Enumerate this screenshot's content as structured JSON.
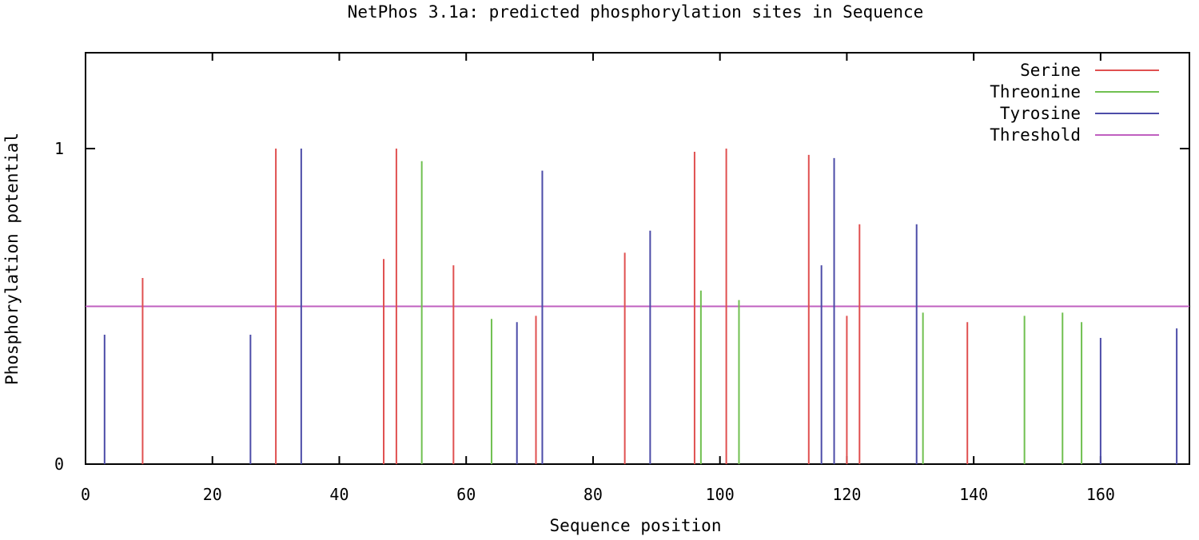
{
  "chart_data": {
    "type": "bar",
    "title": "NetPhos 3.1a: predicted phosphorylation sites in Sequence",
    "xlabel": "Sequence position",
    "ylabel": "Phosphorylation potential",
    "xlim": [
      0,
      174
    ],
    "ylim": [
      0,
      1.3
    ],
    "x_ticks": [
      0,
      20,
      40,
      60,
      80,
      100,
      120,
      140,
      160
    ],
    "y_ticks": [
      0,
      1
    ],
    "legend_position": "top-right",
    "threshold": {
      "name": "Threshold",
      "value": 0.5,
      "color": "#c060c0"
    },
    "series": [
      {
        "name": "Serine",
        "color": "#e05050",
        "points": [
          {
            "x": 9,
            "y": 0.59
          },
          {
            "x": 30,
            "y": 1.0
          },
          {
            "x": 47,
            "y": 0.65
          },
          {
            "x": 49,
            "y": 1.0
          },
          {
            "x": 58,
            "y": 0.63
          },
          {
            "x": 71,
            "y": 0.47
          },
          {
            "x": 85,
            "y": 0.67
          },
          {
            "x": 96,
            "y": 0.99
          },
          {
            "x": 101,
            "y": 1.0
          },
          {
            "x": 114,
            "y": 0.98
          },
          {
            "x": 120,
            "y": 0.47
          },
          {
            "x": 122,
            "y": 0.76
          },
          {
            "x": 139,
            "y": 0.45
          }
        ]
      },
      {
        "name": "Threonine",
        "color": "#70c050",
        "points": [
          {
            "x": 53,
            "y": 0.96
          },
          {
            "x": 64,
            "y": 0.46
          },
          {
            "x": 97,
            "y": 0.55
          },
          {
            "x": 103,
            "y": 0.52
          },
          {
            "x": 132,
            "y": 0.48
          },
          {
            "x": 148,
            "y": 0.47
          },
          {
            "x": 154,
            "y": 0.48
          },
          {
            "x": 157,
            "y": 0.45
          }
        ]
      },
      {
        "name": "Tyrosine",
        "color": "#4c4ca8",
        "points": [
          {
            "x": 3,
            "y": 0.41
          },
          {
            "x": 26,
            "y": 0.41
          },
          {
            "x": 34,
            "y": 1.0
          },
          {
            "x": 68,
            "y": 0.45
          },
          {
            "x": 72,
            "y": 0.93
          },
          {
            "x": 89,
            "y": 0.74
          },
          {
            "x": 116,
            "y": 0.63
          },
          {
            "x": 118,
            "y": 0.97
          },
          {
            "x": 131,
            "y": 0.76
          },
          {
            "x": 160,
            "y": 0.4
          },
          {
            "x": 172,
            "y": 0.43
          }
        ]
      }
    ]
  }
}
